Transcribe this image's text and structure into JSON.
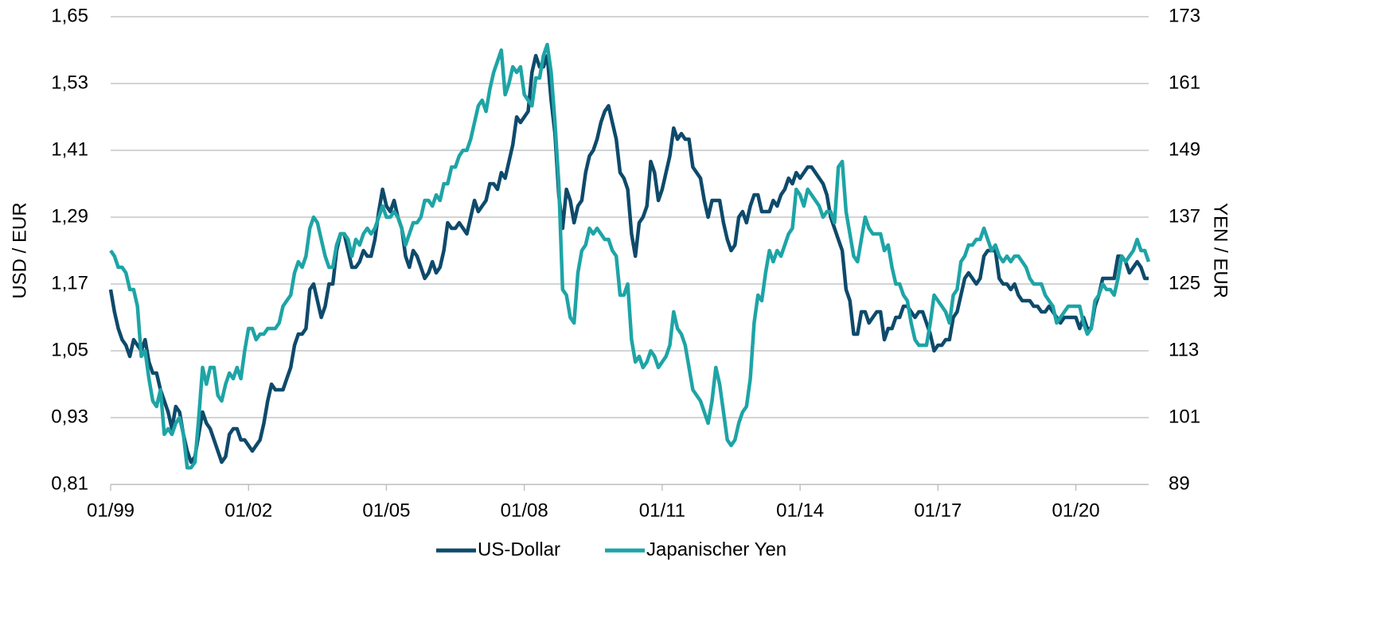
{
  "chart_data": {
    "type": "line",
    "y_label": "USD / EUR",
    "y2_label": "YEN / EUR",
    "categories": [
      "01/99",
      null,
      null,
      null,
      null,
      null,
      null,
      null,
      null,
      null,
      null,
      null,
      null,
      null,
      null,
      null,
      null,
      null,
      null,
      null,
      null,
      null,
      null,
      null,
      null,
      null,
      null,
      null,
      null,
      null,
      null,
      null,
      null,
      null,
      null,
      null,
      "01/02",
      null,
      null,
      null,
      null,
      null,
      null,
      null,
      null,
      null,
      null,
      null,
      null,
      null,
      null,
      null,
      null,
      null,
      null,
      null,
      null,
      null,
      null,
      null,
      null,
      null,
      null,
      null,
      null,
      null,
      null,
      null,
      null,
      null,
      null,
      null,
      "01/05",
      null,
      null,
      null,
      null,
      null,
      null,
      null,
      null,
      null,
      null,
      null,
      null,
      null,
      null,
      null,
      null,
      null,
      null,
      null,
      null,
      null,
      null,
      null,
      null,
      null,
      null,
      null,
      null,
      null,
      null,
      null,
      null,
      null,
      null,
      null,
      "01/08",
      null,
      null,
      null,
      null,
      null,
      null,
      null,
      null,
      null,
      null,
      null,
      null,
      null,
      null,
      null,
      null,
      null,
      null,
      null,
      null,
      null,
      null,
      null,
      null,
      null,
      null,
      null,
      null,
      null,
      null,
      null,
      null,
      null,
      null,
      null,
      "01/11",
      null,
      null,
      null,
      null,
      null,
      null,
      null,
      null,
      null,
      null,
      null,
      null,
      null,
      null,
      null,
      null,
      null,
      null,
      null,
      null,
      null,
      null,
      null,
      null,
      null,
      null,
      null,
      null,
      null,
      null,
      null,
      null,
      null,
      null,
      null,
      "01/14",
      null,
      null,
      null,
      null,
      null,
      null,
      null,
      null,
      null,
      null,
      null,
      null,
      null,
      null,
      null,
      null,
      null,
      null,
      null,
      null,
      null,
      null,
      null,
      null,
      null,
      null,
      null,
      null,
      null,
      null,
      null,
      null,
      null,
      null,
      null,
      "01/17",
      null,
      null,
      null,
      null,
      null,
      null,
      null,
      null,
      null,
      null,
      null,
      null,
      null,
      null,
      null,
      null,
      null,
      null,
      null,
      null,
      null,
      null,
      null,
      null,
      null,
      null,
      null,
      null,
      null,
      null,
      null,
      null,
      null,
      null,
      null,
      "01/20",
      null,
      null,
      null,
      null,
      null,
      null,
      null,
      null,
      null,
      null,
      null,
      null,
      null,
      null,
      null,
      null,
      null,
      null,
      null
    ],
    "series": [
      {
        "name": "US-Dollar",
        "color": "#0e4a6b",
        "axis": "y",
        "values": [
          1.16,
          1.12,
          1.09,
          1.07,
          1.06,
          1.04,
          1.07,
          1.06,
          1.05,
          1.07,
          1.03,
          1.01,
          1.01,
          0.98,
          0.96,
          0.94,
          0.91,
          0.95,
          0.94,
          0.9,
          0.87,
          0.85,
          0.86,
          0.9,
          0.94,
          0.92,
          0.91,
          0.89,
          0.87,
          0.85,
          0.86,
          0.9,
          0.91,
          0.91,
          0.89,
          0.89,
          0.88,
          0.87,
          0.88,
          0.89,
          0.92,
          0.96,
          0.99,
          0.98,
          0.98,
          0.98,
          1.0,
          1.02,
          1.06,
          1.08,
          1.08,
          1.09,
          1.16,
          1.17,
          1.14,
          1.11,
          1.13,
          1.17,
          1.17,
          1.23,
          1.26,
          1.26,
          1.23,
          1.2,
          1.2,
          1.21,
          1.23,
          1.22,
          1.22,
          1.25,
          1.3,
          1.34,
          1.31,
          1.3,
          1.32,
          1.29,
          1.27,
          1.22,
          1.2,
          1.23,
          1.22,
          1.2,
          1.18,
          1.19,
          1.21,
          1.19,
          1.2,
          1.23,
          1.28,
          1.27,
          1.27,
          1.28,
          1.27,
          1.26,
          1.29,
          1.32,
          1.3,
          1.31,
          1.32,
          1.35,
          1.35,
          1.34,
          1.37,
          1.36,
          1.39,
          1.42,
          1.47,
          1.46,
          1.47,
          1.48,
          1.55,
          1.58,
          1.56,
          1.56,
          1.58,
          1.5,
          1.44,
          1.33,
          1.27,
          1.34,
          1.32,
          1.28,
          1.31,
          1.32,
          1.37,
          1.4,
          1.41,
          1.43,
          1.46,
          1.48,
          1.49,
          1.46,
          1.43,
          1.37,
          1.36,
          1.34,
          1.26,
          1.22,
          1.28,
          1.29,
          1.31,
          1.39,
          1.37,
          1.32,
          1.34,
          1.37,
          1.4,
          1.45,
          1.43,
          1.44,
          1.43,
          1.43,
          1.38,
          1.37,
          1.36,
          1.32,
          1.29,
          1.32,
          1.32,
          1.32,
          1.28,
          1.25,
          1.23,
          1.24,
          1.29,
          1.3,
          1.28,
          1.31,
          1.33,
          1.33,
          1.3,
          1.3,
          1.3,
          1.32,
          1.31,
          1.33,
          1.34,
          1.36,
          1.35,
          1.37,
          1.36,
          1.37,
          1.38,
          1.38,
          1.37,
          1.36,
          1.35,
          1.33,
          1.29,
          1.27,
          1.25,
          1.23,
          1.16,
          1.14,
          1.08,
          1.08,
          1.12,
          1.12,
          1.1,
          1.11,
          1.12,
          1.12,
          1.07,
          1.09,
          1.09,
          1.11,
          1.11,
          1.13,
          1.13,
          1.12,
          1.11,
          1.12,
          1.12,
          1.1,
          1.08,
          1.05,
          1.06,
          1.06,
          1.07,
          1.07,
          1.11,
          1.12,
          1.15,
          1.18,
          1.19,
          1.18,
          1.17,
          1.18,
          1.22,
          1.23,
          1.23,
          1.23,
          1.18,
          1.17,
          1.17,
          1.16,
          1.17,
          1.15,
          1.14,
          1.14,
          1.14,
          1.13,
          1.13,
          1.12,
          1.12,
          1.13,
          1.12,
          1.11,
          1.1,
          1.11,
          1.11,
          1.11,
          1.11,
          1.09,
          1.11,
          1.09,
          1.09,
          1.13,
          1.15,
          1.18,
          1.18,
          1.18,
          1.18,
          1.22,
          1.22,
          1.21,
          1.19,
          1.2,
          1.21,
          1.2,
          1.18,
          1.18
        ]
      },
      {
        "name": "Japanischer Yen",
        "color": "#1ea4a6",
        "axis": "y2",
        "values": [
          131,
          130,
          128,
          128,
          127,
          124,
          124,
          121,
          112,
          113,
          108,
          104,
          103,
          106,
          98,
          99,
          98,
          100,
          101,
          98,
          92,
          92,
          93,
          101,
          110,
          107,
          110,
          110,
          105,
          104,
          107,
          109,
          108,
          110,
          108,
          113,
          117,
          117,
          115,
          116,
          116,
          117,
          117,
          117,
          118,
          121,
          122,
          123,
          127,
          129,
          128,
          130,
          135,
          137,
          136,
          133,
          130,
          128,
          128,
          132,
          134,
          134,
          133,
          130,
          133,
          132,
          134,
          135,
          134,
          135,
          137,
          139,
          137,
          137,
          138,
          137,
          135,
          132,
          134,
          136,
          136,
          137,
          140,
          140,
          139,
          141,
          140,
          143,
          143,
          146,
          146,
          148,
          149,
          149,
          151,
          154,
          157,
          158,
          156,
          160,
          163,
          165,
          167,
          159,
          161,
          164,
          163,
          164,
          159,
          158,
          157,
          162,
          162,
          166,
          168,
          163,
          154,
          143,
          124,
          123,
          119,
          118,
          127,
          131,
          132,
          135,
          134,
          135,
          134,
          133,
          133,
          131,
          130,
          123,
          123,
          125,
          115,
          111,
          112,
          110,
          111,
          113,
          112,
          110,
          111,
          112,
          114,
          120,
          117,
          116,
          114,
          110,
          106,
          105,
          104,
          102,
          100,
          104,
          110,
          107,
          102,
          97,
          96,
          97,
          100,
          102,
          103,
          108,
          118,
          123,
          122,
          127,
          131,
          129,
          131,
          130,
          132,
          134,
          135,
          142,
          141,
          139,
          142,
          141,
          140,
          139,
          137,
          138,
          138,
          136,
          146,
          147,
          138,
          134,
          130,
          129,
          133,
          137,
          135,
          134,
          134,
          134,
          131,
          132,
          128,
          125,
          125,
          123,
          122,
          118,
          115,
          114,
          114,
          114,
          118,
          123,
          122,
          121,
          120,
          118,
          123,
          124,
          129,
          130,
          132,
          132,
          133,
          133,
          135,
          133,
          131,
          132,
          130,
          129,
          130,
          129,
          130,
          130,
          129,
          128,
          126,
          125,
          125,
          125,
          123,
          122,
          121,
          118,
          119,
          120,
          121,
          121,
          121,
          121,
          118,
          116,
          117,
          122,
          123,
          125,
          124,
          124,
          123,
          126,
          130,
          129,
          130,
          131,
          133,
          131,
          131,
          129
        ]
      }
    ],
    "ylim": [
      0.81,
      1.65
    ],
    "yticks": [
      {
        "value": 0.81,
        "label": "0,81"
      },
      {
        "value": 0.93,
        "label": "0,93"
      },
      {
        "value": 1.05,
        "label": "1,05"
      },
      {
        "value": 1.17,
        "label": "1,17"
      },
      {
        "value": 1.29,
        "label": "1,29"
      },
      {
        "value": 1.41,
        "label": "1,41"
      },
      {
        "value": 1.53,
        "label": "1,53"
      },
      {
        "value": 1.65,
        "label": "1,65"
      }
    ],
    "y2lim": [
      89,
      173
    ],
    "y2ticks": [
      89,
      101,
      113,
      125,
      137,
      149,
      161,
      173
    ],
    "grid": true,
    "legend": "bottom"
  }
}
